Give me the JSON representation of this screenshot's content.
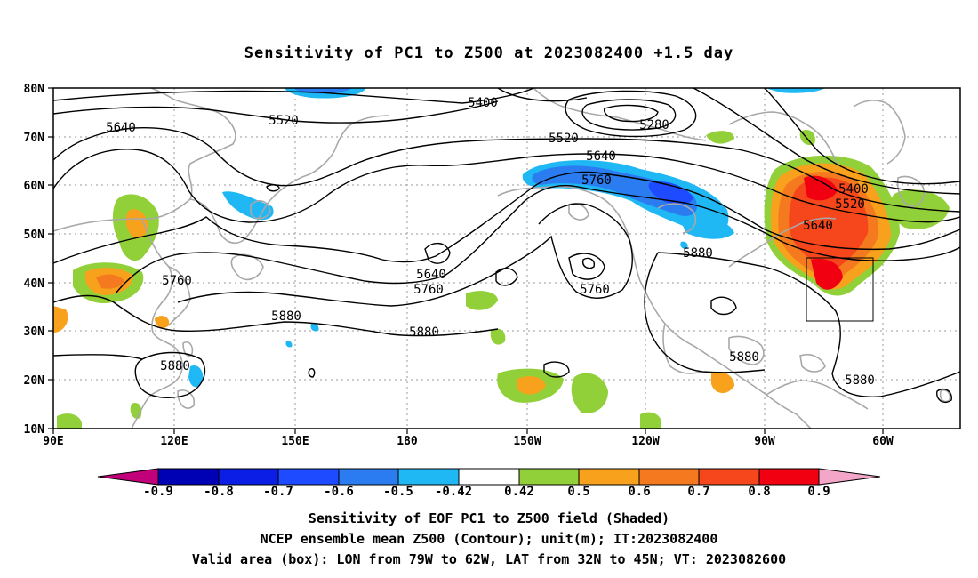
{
  "title": "Sensitivity of PC1 to Z500 at 2023082400 +1.5 day",
  "lat_ticks": [
    "80N",
    "70N",
    "60N",
    "50N",
    "40N",
    "30N",
    "20N",
    "10N"
  ],
  "lon_ticks": [
    "90E",
    "120E",
    "150E",
    "180",
    "150W",
    "120W",
    "90W",
    "60W"
  ],
  "contour_labels": {
    "5400_a": "5400",
    "5280": "5280",
    "5520_a": "5520",
    "5640_a": "5640",
    "5520_b": "5520",
    "5640_b": "5640",
    "5760_a": "5760",
    "5400_b": "5400",
    "5520_c": "5520",
    "5640_c": "5640",
    "5880_a": "5880",
    "5760_b": "5760",
    "5640_d": "5640",
    "5760_c": "5760",
    "5880_b": "5880",
    "5880_c": "5880",
    "5760_d": "5760",
    "5880_d": "5880",
    "5880_e": "5880",
    "5880_f": "5880"
  },
  "colorbar_labels": [
    "-0.9",
    "-0.8",
    "-0.7",
    "-0.6",
    "-0.5",
    "-0.42",
    "0.42",
    "0.5",
    "0.6",
    "0.7",
    "0.8",
    "0.9"
  ],
  "colorbar_colors": [
    "#c2007a",
    "#0000b4",
    "#0a1ee6",
    "#1e4bff",
    "#2a7cf0",
    "#1fb8f5",
    "#ffffff",
    "#92d03a",
    "#f7a11c",
    "#f57a1f",
    "#f5461c",
    "#f00010",
    "#f4a6c8"
  ],
  "captions": {
    "line1": "Sensitivity of EOF PC1 to Z500 field (Shaded)",
    "line2": "NCEP ensemble mean Z500 (Contour); unit(m); IT:2023082400",
    "line3": "Valid area (box): LON from 79W to 62W, LAT from 32N to 45N; VT: 2023082600"
  }
}
